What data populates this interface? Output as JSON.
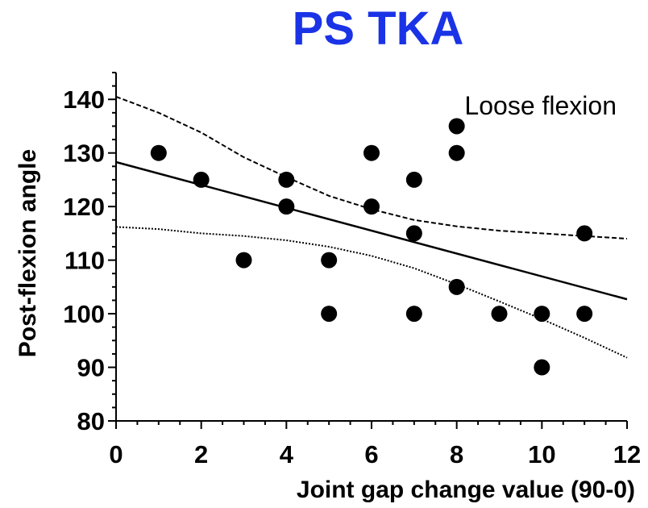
{
  "chart_data": {
    "type": "scatter",
    "title": "PS TKA",
    "title_color": "#1a33e6",
    "xlabel": "Joint gap change value (90-0)",
    "ylabel": "Post-flexion angle",
    "annotation": "Loose flexion",
    "xlim": [
      0,
      12
    ],
    "ylim": [
      80,
      145
    ],
    "xticks": [
      0,
      2,
      4,
      6,
      8,
      10,
      12
    ],
    "yticks": [
      80,
      90,
      100,
      110,
      120,
      130,
      140
    ],
    "grid": false,
    "points": [
      {
        "x": 1,
        "y": 130
      },
      {
        "x": 2,
        "y": 125
      },
      {
        "x": 3,
        "y": 110
      },
      {
        "x": 4,
        "y": 125
      },
      {
        "x": 4,
        "y": 120
      },
      {
        "x": 5,
        "y": 110
      },
      {
        "x": 5,
        "y": 100
      },
      {
        "x": 6,
        "y": 130
      },
      {
        "x": 6,
        "y": 120
      },
      {
        "x": 7,
        "y": 125
      },
      {
        "x": 7,
        "y": 115
      },
      {
        "x": 7,
        "y": 100
      },
      {
        "x": 8,
        "y": 135
      },
      {
        "x": 8,
        "y": 130
      },
      {
        "x": 8,
        "y": 105
      },
      {
        "x": 9,
        "y": 100
      },
      {
        "x": 10,
        "y": 100
      },
      {
        "x": 10,
        "y": 90
      },
      {
        "x": 11,
        "y": 115
      },
      {
        "x": 11,
        "y": 100
      }
    ],
    "regression_line": [
      {
        "x": 0,
        "y": 128.3
      },
      {
        "x": 12,
        "y": 102.7
      }
    ],
    "upper_band": [
      {
        "x": 0,
        "y": 140.5
      },
      {
        "x": 1,
        "y": 137.5
      },
      {
        "x": 2,
        "y": 133.8
      },
      {
        "x": 3,
        "y": 129.2
      },
      {
        "x": 4,
        "y": 125.5
      },
      {
        "x": 5,
        "y": 122
      },
      {
        "x": 6,
        "y": 119.5
      },
      {
        "x": 7,
        "y": 117.5
      },
      {
        "x": 8,
        "y": 116.3
      },
      {
        "x": 9,
        "y": 115.5
      },
      {
        "x": 10,
        "y": 115
      },
      {
        "x": 11,
        "y": 114.5
      },
      {
        "x": 12,
        "y": 114
      }
    ],
    "lower_band": [
      {
        "x": 0,
        "y": 116.2
      },
      {
        "x": 1,
        "y": 115.8
      },
      {
        "x": 2,
        "y": 115
      },
      {
        "x": 3,
        "y": 114.5
      },
      {
        "x": 4,
        "y": 113.7
      },
      {
        "x": 5,
        "y": 112.5
      },
      {
        "x": 6,
        "y": 110.8
      },
      {
        "x": 7,
        "y": 108.5
      },
      {
        "x": 8,
        "y": 105.5
      },
      {
        "x": 9,
        "y": 102.3
      },
      {
        "x": 10,
        "y": 99
      },
      {
        "x": 11,
        "y": 95.5
      },
      {
        "x": 12,
        "y": 91.8
      }
    ]
  }
}
